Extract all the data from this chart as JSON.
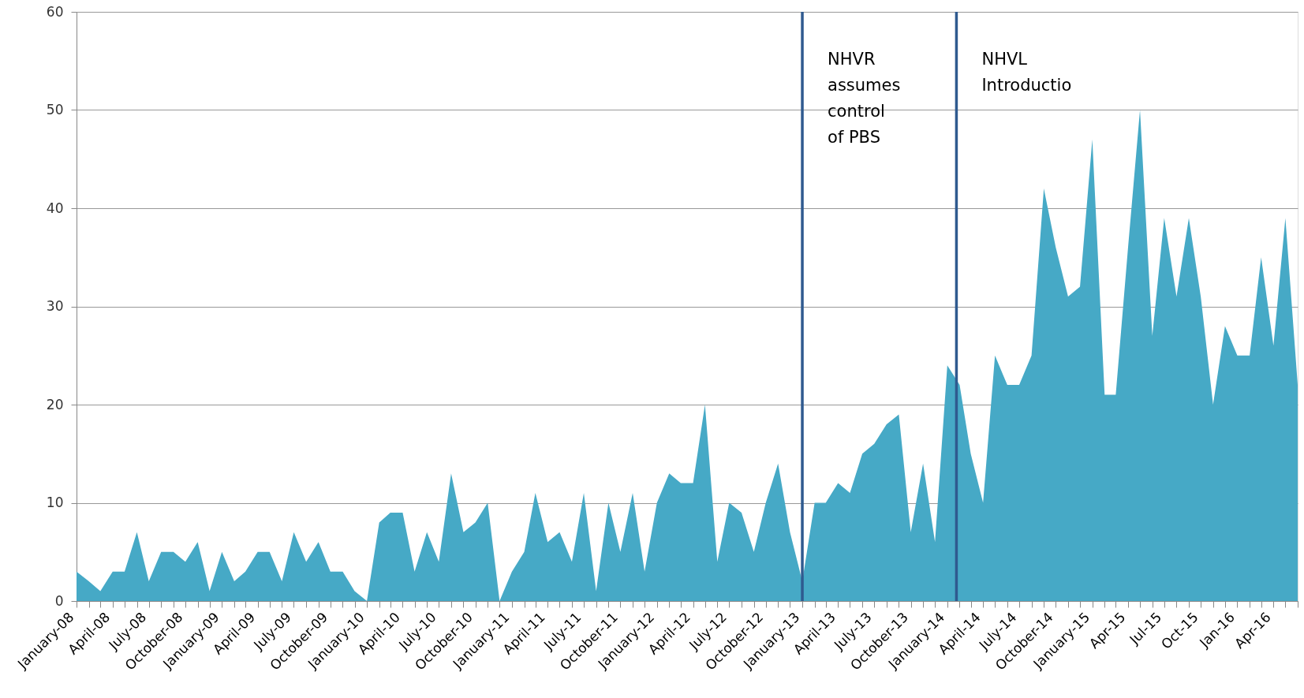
{
  "chart_data": {
    "type": "area",
    "x": [
      "2008-01",
      "2008-02",
      "2008-03",
      "2008-04",
      "2008-05",
      "2008-06",
      "2008-07",
      "2008-08",
      "2008-09",
      "2008-10",
      "2008-11",
      "2008-12",
      "2009-01",
      "2009-02",
      "2009-03",
      "2009-04",
      "2009-05",
      "2009-06",
      "2009-07",
      "2009-08",
      "2009-09",
      "2009-10",
      "2009-11",
      "2009-12",
      "2010-01",
      "2010-02",
      "2010-03",
      "2010-04",
      "2010-05",
      "2010-06",
      "2010-07",
      "2010-08",
      "2010-09",
      "2010-10",
      "2010-11",
      "2010-12",
      "2011-01",
      "2011-02",
      "2011-03",
      "2011-04",
      "2011-05",
      "2011-06",
      "2011-07",
      "2011-08",
      "2011-09",
      "2011-10",
      "2011-11",
      "2011-12",
      "2012-01",
      "2012-02",
      "2012-03",
      "2012-04",
      "2012-05",
      "2012-06",
      "2012-07",
      "2012-08",
      "2012-09",
      "2012-10",
      "2012-11",
      "2012-12",
      "2013-01",
      "2013-02",
      "2013-03",
      "2013-04",
      "2013-05",
      "2013-06",
      "2013-07",
      "2013-08",
      "2013-09",
      "2013-10",
      "2013-11",
      "2013-12",
      "2014-01",
      "2014-02",
      "2014-03",
      "2014-04",
      "2014-05",
      "2014-06",
      "2014-07",
      "2014-08",
      "2014-09",
      "2014-10",
      "2014-11",
      "2014-12",
      "2015-01",
      "2015-02",
      "2015-03",
      "2015-04",
      "2015-05",
      "2015-06",
      "2015-07",
      "2015-08",
      "2015-09",
      "2015-10",
      "2015-11",
      "2015-12",
      "2016-01",
      "2016-02",
      "2016-03",
      "2016-04",
      "2016-05",
      "2016-06"
    ],
    "series": [
      {
        "color": "#46a9c6",
        "values": [
          3,
          2,
          1,
          3,
          3,
          7,
          2,
          5,
          5,
          4,
          6,
          1,
          5,
          2,
          3,
          5,
          5,
          2,
          7,
          4,
          6,
          3,
          3,
          1,
          0,
          8,
          9,
          9,
          3,
          7,
          4,
          13,
          7,
          8,
          10,
          0,
          3,
          5,
          11,
          6,
          7,
          4,
          11,
          1,
          10,
          5,
          11,
          3,
          10,
          13,
          12,
          12,
          20,
          4,
          10,
          9,
          5,
          10,
          14,
          7,
          2,
          10,
          10,
          12,
          11,
          15,
          16,
          18,
          19,
          7,
          14,
          6,
          24,
          22,
          15,
          10,
          25,
          22,
          22,
          25,
          42,
          36,
          31,
          32,
          47,
          21,
          21,
          36,
          50,
          27,
          39,
          31,
          39,
          31,
          20,
          28,
          25,
          25,
          35,
          26,
          39,
          22
        ]
      }
    ],
    "xlim": [
      "2008-01",
      "2016-06"
    ],
    "xticks": [
      {
        "value": "2008-01",
        "label": "January-08"
      },
      {
        "value": "2008-02",
        "label": null
      },
      {
        "value": "2008-03",
        "label": null
      },
      {
        "value": "2008-04",
        "label": "April-08"
      },
      {
        "value": "2008-05",
        "label": null
      },
      {
        "value": "2008-06",
        "label": null
      },
      {
        "value": "2008-07",
        "label": "July-08"
      },
      {
        "value": "2008-08",
        "label": null
      },
      {
        "value": "2008-09",
        "label": null
      },
      {
        "value": "2008-10",
        "label": "October-08"
      },
      {
        "value": "2008-11",
        "label": null
      },
      {
        "value": "2008-12",
        "label": null
      },
      {
        "value": "2009-01",
        "label": "January-09"
      },
      {
        "value": "2009-02",
        "label": null
      },
      {
        "value": "2009-03",
        "label": null
      },
      {
        "value": "2009-04",
        "label": "April-09"
      },
      {
        "value": "2009-05",
        "label": null
      },
      {
        "value": "2009-06",
        "label": null
      },
      {
        "value": "2009-07",
        "label": "July-09"
      },
      {
        "value": "2009-08",
        "label": null
      },
      {
        "value": "2009-09",
        "label": null
      },
      {
        "value": "2009-10",
        "label": "October-09"
      },
      {
        "value": "2009-11",
        "label": null
      },
      {
        "value": "2009-12",
        "label": null
      },
      {
        "value": "2010-01",
        "label": "January-10"
      },
      {
        "value": "2010-02",
        "label": null
      },
      {
        "value": "2010-03",
        "label": null
      },
      {
        "value": "2010-04",
        "label": "April-10"
      },
      {
        "value": "2010-05",
        "label": null
      },
      {
        "value": "2010-06",
        "label": null
      },
      {
        "value": "2010-07",
        "label": "July-10"
      },
      {
        "value": "2010-08",
        "label": null
      },
      {
        "value": "2010-09",
        "label": null
      },
      {
        "value": "2010-10",
        "label": "October-10"
      },
      {
        "value": "2010-11",
        "label": null
      },
      {
        "value": "2010-12",
        "label": null
      },
      {
        "value": "2011-01",
        "label": "January-11"
      },
      {
        "value": "2011-02",
        "label": null
      },
      {
        "value": "2011-03",
        "label": null
      },
      {
        "value": "2011-04",
        "label": "April-11"
      },
      {
        "value": "2011-05",
        "label": null
      },
      {
        "value": "2011-06",
        "label": null
      },
      {
        "value": "2011-07",
        "label": "July-11"
      },
      {
        "value": "2011-08",
        "label": null
      },
      {
        "value": "2011-09",
        "label": null
      },
      {
        "value": "2011-10",
        "label": "October-11"
      },
      {
        "value": "2011-11",
        "label": null
      },
      {
        "value": "2011-12",
        "label": null
      },
      {
        "value": "2012-01",
        "label": "January-12"
      },
      {
        "value": "2012-02",
        "label": null
      },
      {
        "value": "2012-03",
        "label": null
      },
      {
        "value": "2012-04",
        "label": "April-12"
      },
      {
        "value": "2012-05",
        "label": null
      },
      {
        "value": "2012-06",
        "label": null
      },
      {
        "value": "2012-07",
        "label": "July-12"
      },
      {
        "value": "2012-08",
        "label": null
      },
      {
        "value": "2012-09",
        "label": null
      },
      {
        "value": "2012-10",
        "label": "October-12"
      },
      {
        "value": "2012-11",
        "label": null
      },
      {
        "value": "2012-12",
        "label": null
      },
      {
        "value": "2013-01",
        "label": "January-13"
      },
      {
        "value": "2013-02",
        "label": null
      },
      {
        "value": "2013-03",
        "label": null
      },
      {
        "value": "2013-04",
        "label": "April-13"
      },
      {
        "value": "2013-05",
        "label": null
      },
      {
        "value": "2013-06",
        "label": null
      },
      {
        "value": "2013-07",
        "label": "July-13"
      },
      {
        "value": "2013-08",
        "label": null
      },
      {
        "value": "2013-09",
        "label": null
      },
      {
        "value": "2013-10",
        "label": "October-13"
      },
      {
        "value": "2013-11",
        "label": null
      },
      {
        "value": "2013-12",
        "label": null
      },
      {
        "value": "2014-01",
        "label": "January-14"
      },
      {
        "value": "2014-02",
        "label": null
      },
      {
        "value": "2014-03",
        "label": null
      },
      {
        "value": "2014-04",
        "label": "April-14"
      },
      {
        "value": "2014-05",
        "label": null
      },
      {
        "value": "2014-06",
        "label": null
      },
      {
        "value": "2014-07",
        "label": "July-14"
      },
      {
        "value": "2014-08",
        "label": null
      },
      {
        "value": "2014-09",
        "label": null
      },
      {
        "value": "2014-10",
        "label": "October-14"
      },
      {
        "value": "2014-11",
        "label": null
      },
      {
        "value": "2014-12",
        "label": null
      },
      {
        "value": "2015-01",
        "label": "January-15"
      },
      {
        "value": "2015-02",
        "label": null
      },
      {
        "value": "2015-03",
        "label": null
      },
      {
        "value": "2015-04",
        "label": "Apr-15"
      },
      {
        "value": "2015-05",
        "label": null
      },
      {
        "value": "2015-06",
        "label": null
      },
      {
        "value": "2015-07",
        "label": "Jul-15"
      },
      {
        "value": "2015-08",
        "label": null
      },
      {
        "value": "2015-09",
        "label": null
      },
      {
        "value": "2015-10",
        "label": "Oct-15"
      },
      {
        "value": "2015-11",
        "label": null
      },
      {
        "value": "2015-12",
        "label": null
      },
      {
        "value": "2016-01",
        "label": "Jan-16"
      },
      {
        "value": "2016-02",
        "label": null
      },
      {
        "value": "2016-03",
        "label": null
      },
      {
        "value": "2016-04",
        "label": "Apr-16"
      },
      {
        "value": "2016-05",
        "label": null
      },
      {
        "value": "2016-06",
        "label": null
      }
    ],
    "ylim": [
      0,
      60
    ],
    "yticks": [
      0,
      10,
      20,
      30,
      40,
      50,
      60
    ],
    "grid": "y",
    "ref_lines": [
      {
        "axis": "x",
        "value": "2013-01",
        "label": "NHVR assumes control of PBS",
        "color": "#2f5a8f"
      },
      {
        "axis": "x",
        "value": "2014-01-24",
        "label": "NHVL Introductio",
        "color": "#2f5a8f"
      }
    ]
  }
}
